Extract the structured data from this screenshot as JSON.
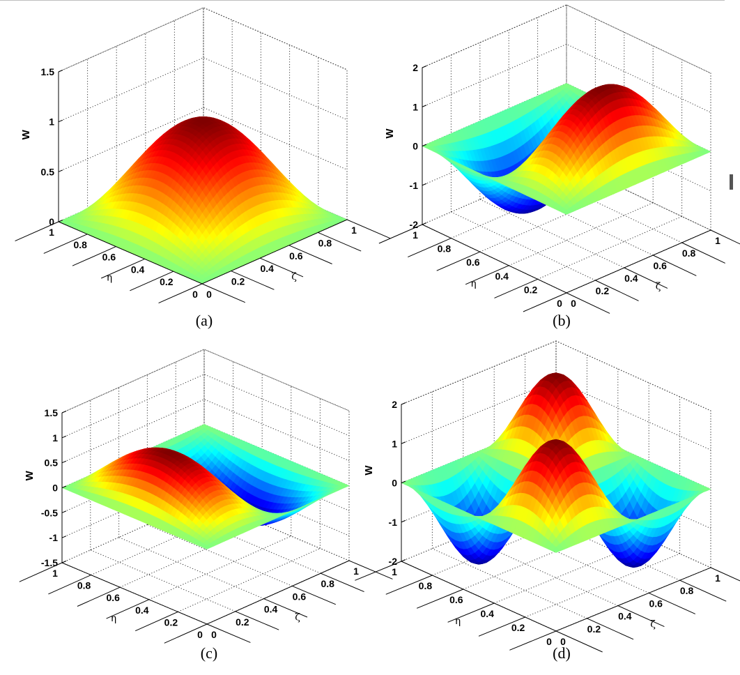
{
  "chart_data": [
    {
      "type": "surface3d",
      "panel_label": "(a)",
      "function": "W = sin(pi*zeta) * sin(pi*eta)",
      "mode": [
        1,
        1
      ],
      "amplitude": 1,
      "zlabel": "W",
      "xlabel": "ζ",
      "ylabel": "η",
      "xlim": [
        0,
        1
      ],
      "ylim": [
        0,
        1
      ],
      "zlim": [
        0,
        1.5
      ],
      "x_ticks": [
        "0",
        "0.2",
        "0.4",
        "0.6",
        "0.8",
        "1"
      ],
      "y_ticks": [
        "0",
        "0.2",
        "0.4",
        "0.6",
        "0.8",
        "1"
      ],
      "z_ticks": [
        "0",
        "0.5",
        "1",
        "1.5"
      ],
      "colormap": "jet",
      "grid": true
    },
    {
      "type": "surface3d",
      "panel_label": "(b)",
      "function": "W = 2 * sin(pi*zeta) * sin(2*pi*eta)",
      "mode": [
        1,
        2
      ],
      "amplitude": 2,
      "zlabel": "W",
      "xlabel": "ζ",
      "ylabel": "η",
      "xlim": [
        0,
        1
      ],
      "ylim": [
        0,
        1
      ],
      "zlim": [
        -2,
        2
      ],
      "x_ticks": [
        "0",
        "0.2",
        "0.4",
        "0.6",
        "0.8",
        "1"
      ],
      "y_ticks": [
        "0",
        "0.2",
        "0.4",
        "0.6",
        "0.8",
        "1"
      ],
      "z_ticks": [
        "-2",
        "-1",
        "0",
        "1",
        "2"
      ],
      "colormap": "jet",
      "grid": true
    },
    {
      "type": "surface3d",
      "panel_label": "(c)",
      "function": "W = sin(2*pi*zeta) * sin(pi*eta)",
      "mode": [
        2,
        1
      ],
      "amplitude": 1,
      "zlabel": "W",
      "xlabel": "ζ",
      "ylabel": "η",
      "xlim": [
        0,
        1
      ],
      "ylim": [
        0,
        1
      ],
      "zlim": [
        -1.5,
        1.5
      ],
      "x_ticks": [
        "0",
        "0.2",
        "0.4",
        "0.6",
        "0.8",
        "1"
      ],
      "y_ticks": [
        "0",
        "0.2",
        "0.4",
        "0.6",
        "0.8",
        "1"
      ],
      "z_ticks": [
        "-1.5",
        "-1",
        "-0.5",
        "0",
        "0.5",
        "1",
        "1.5"
      ],
      "colormap": "jet",
      "grid": true
    },
    {
      "type": "surface3d",
      "panel_label": "(d)",
      "function": "W = 2 * sin(2*pi*zeta) * sin(2*pi*eta)",
      "mode": [
        2,
        2
      ],
      "amplitude": 2,
      "zlabel": "W",
      "xlabel": "ζ",
      "ylabel": "η",
      "xlim": [
        0,
        1
      ],
      "ylim": [
        0,
        1
      ],
      "zlim": [
        -2,
        2
      ],
      "x_ticks": [
        "0",
        "0.2",
        "0.4",
        "0.6",
        "0.8",
        "1"
      ],
      "y_ticks": [
        "0",
        "0.2",
        "0.4",
        "0.6",
        "0.8",
        "1"
      ],
      "z_ticks": [
        "-2",
        "-1",
        "0",
        "1",
        "2"
      ],
      "colormap": "jet",
      "grid": true
    }
  ]
}
